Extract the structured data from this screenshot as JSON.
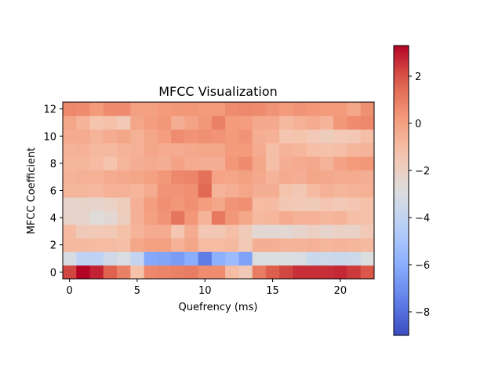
{
  "chart_data": {
    "type": "heatmap",
    "title": "MFCC Visualization",
    "xlabel": "Quefrency (ms)",
    "ylabel": "MFCC Coefficient",
    "xticks": [
      0,
      5,
      10,
      15,
      20
    ],
    "yticks": [
      0,
      2,
      4,
      6,
      8,
      10,
      12
    ],
    "xlim": [
      -0.5,
      22.5
    ],
    "ylim": [
      -0.5,
      12.5
    ],
    "colormap": "coolwarm",
    "vmin": -9.0,
    "vmax": 3.3,
    "colorbar_ticks": [
      2,
      0,
      -2,
      -4,
      -6,
      -8
    ],
    "colorbar_tick_labels": [
      "2",
      "0",
      "−2",
      "−4",
      "−6",
      "−8"
    ],
    "grid": false,
    "values": [
      [
        2.2,
        3.3,
        2.8,
        1.7,
        0.9,
        -1.2,
        0.7,
        0.8,
        0.9,
        1.0,
        0.6,
        0.6,
        -1.0,
        -1.6,
        1.0,
        1.8,
        2.2,
        2.6,
        2.6,
        2.6,
        2.7,
        2.4,
        1.9
      ],
      [
        -3.1,
        -4.1,
        -4.1,
        -3.4,
        -3.0,
        -3.9,
        -6.2,
        -6.3,
        -6.6,
        -6.0,
        -7.6,
        -5.9,
        -5.4,
        -6.4,
        -2.9,
        -2.9,
        -2.9,
        -3.0,
        -3.6,
        -3.5,
        -3.6,
        -3.5,
        -2.9
      ],
      [
        -0.9,
        -0.9,
        -1.0,
        -1.0,
        -1.1,
        -0.2,
        0.0,
        0.0,
        -0.6,
        -0.2,
        -1.0,
        -1.0,
        -0.9,
        -1.6,
        -0.5,
        -0.5,
        -0.7,
        -0.7,
        -0.6,
        -0.8,
        -0.7,
        -0.8,
        -0.9
      ],
      [
        -1.0,
        -1.7,
        -1.6,
        -1.6,
        -1.2,
        -0.7,
        -0.4,
        -0.4,
        -1.4,
        -0.4,
        -1.5,
        -1.5,
        -1.1,
        -1.7,
        -2.5,
        -2.5,
        -2.5,
        -2.3,
        -2.0,
        -2.3,
        -2.1,
        -2.1,
        -1.6
      ],
      [
        -2.2,
        -2.3,
        -2.7,
        -2.5,
        -1.9,
        -0.6,
        0.0,
        0.4,
        1.2,
        0.3,
        -0.7,
        1.1,
        0.3,
        -0.2,
        -0.9,
        -0.8,
        -0.4,
        -0.6,
        -0.6,
        -0.8,
        -0.7,
        -1.1,
        -1.2
      ],
      [
        -2.3,
        -2.2,
        -2.3,
        -2.1,
        -1.8,
        -0.6,
        0.1,
        0.5,
        0.3,
        0.5,
        0.1,
        -0.2,
        0.4,
        0.5,
        -1.0,
        -1.0,
        -1.5,
        -1.6,
        -1.7,
        -1.4,
        -1.6,
        -1.4,
        -1.2
      ],
      [
        -0.8,
        -0.8,
        -0.9,
        -0.6,
        -0.6,
        -0.8,
        -0.4,
        0.4,
        0.4,
        0.5,
        1.5,
        -0.7,
        -0.5,
        -0.2,
        -0.5,
        -0.5,
        -1.3,
        -1.5,
        -1.0,
        -0.6,
        -0.8,
        -0.7,
        -0.6
      ],
      [
        -0.7,
        -0.6,
        -0.6,
        -0.4,
        -0.3,
        -0.2,
        0.0,
        0.3,
        0.7,
        0.8,
        1.3,
        -0.1,
        -0.2,
        0.0,
        -0.3,
        -0.7,
        -0.4,
        -0.5,
        -0.2,
        -0.3,
        -0.4,
        -0.4,
        -0.5
      ],
      [
        -0.8,
        -0.8,
        -1.0,
        -1.3,
        -0.8,
        -0.5,
        -0.4,
        -0.5,
        -0.1,
        -0.4,
        -0.5,
        -0.5,
        0.3,
        0.6,
        -0.2,
        -1.1,
        -0.5,
        -0.4,
        -0.3,
        -0.7,
        -0.1,
        0.2,
        0.3
      ],
      [
        -0.7,
        -0.6,
        -0.9,
        -0.9,
        -0.7,
        -0.6,
        -0.2,
        -0.4,
        -0.4,
        -0.3,
        -0.2,
        -0.2,
        0.2,
        0.2,
        -0.4,
        -1.1,
        -0.7,
        -0.8,
        -1.1,
        -1.2,
        -1.1,
        -0.8,
        -0.7
      ],
      [
        -0.4,
        -0.4,
        -0.7,
        -0.4,
        -0.2,
        -0.6,
        -0.2,
        0.1,
        0.6,
        0.4,
        0.5,
        0.4,
        0.2,
        0.4,
        -0.5,
        -0.6,
        -1.4,
        -1.3,
        -1.6,
        -1.8,
        -1.6,
        -1.5,
        -1.1
      ],
      [
        -0.2,
        -0.7,
        -1.3,
        -1.2,
        -1.6,
        -0.2,
        0.1,
        0.3,
        -0.5,
        -0.1,
        0.3,
        0.9,
        0.2,
        0.1,
        -0.3,
        -0.3,
        -0.9,
        -0.6,
        -0.4,
        -0.7,
        0.3,
        0.6,
        0.7
      ],
      [
        0.7,
        0.6,
        0.2,
        0.6,
        0.6,
        0.0,
        0.0,
        0.2,
        0.3,
        0.3,
        0.2,
        0.2,
        0.6,
        0.7,
        0.6,
        0.4,
        0.2,
        0.4,
        0.3,
        0.2,
        0.2,
        -0.2,
        0.5
      ]
    ]
  }
}
